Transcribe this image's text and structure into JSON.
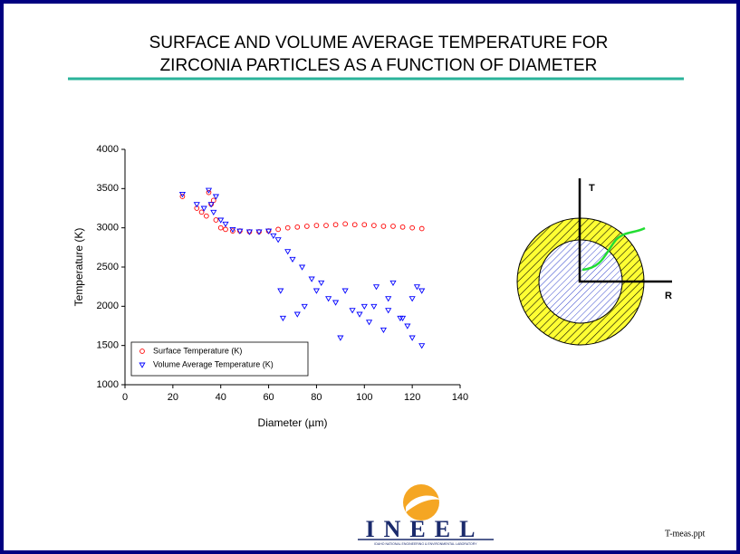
{
  "slide_title": [
    "SURFACE AND VOLUME AVERAGE TEMPERATURE FOR",
    "ZIRCONIA PARTICLES AS A FUNCTION OF DIAMETER"
  ],
  "chart_data": {
    "type": "scatter",
    "xlabel": "Diameter (µm)",
    "ylabel": "Temperature (K)",
    "xlim": [
      0,
      140
    ],
    "xticks": [
      0,
      20,
      40,
      60,
      80,
      100,
      120,
      140
    ],
    "ylim": [
      1000,
      4000
    ],
    "yticks": [
      1000,
      1500,
      2000,
      2500,
      3000,
      3500,
      4000
    ],
    "legend": "lower left",
    "series": [
      {
        "name": "Surface Temperature (K)",
        "color": "#ff0000",
        "marker": "circle",
        "x": [
          24,
          30,
          32,
          34,
          35,
          36,
          37,
          38,
          40,
          42,
          45,
          48,
          52,
          56,
          60,
          64,
          68,
          72,
          76,
          80,
          84,
          88,
          92,
          96,
          100,
          104,
          108,
          112,
          116,
          120,
          124
        ],
        "values": [
          3400,
          3250,
          3200,
          3150,
          3450,
          3300,
          3350,
          3100,
          3000,
          2980,
          2960,
          2960,
          2950,
          2950,
          2960,
          2980,
          3000,
          3010,
          3020,
          3030,
          3030,
          3040,
          3050,
          3040,
          3040,
          3030,
          3020,
          3020,
          3010,
          3000,
          2990
        ]
      },
      {
        "name": "Volume Average Temperature (K)",
        "color": "#0000ff",
        "marker": "triangle-down",
        "x": [
          24,
          30,
          33,
          35,
          36,
          37,
          38,
          40,
          42,
          45,
          48,
          52,
          56,
          60,
          62,
          64,
          65,
          66,
          68,
          70,
          72,
          74,
          75,
          78,
          80,
          82,
          85,
          88,
          90,
          92,
          95,
          98,
          100,
          102,
          105,
          108,
          110,
          112,
          115,
          118,
          120,
          122,
          124,
          124,
          120,
          116,
          110,
          104
        ],
        "values": [
          3430,
          3300,
          3250,
          3480,
          3300,
          3200,
          3400,
          3100,
          3050,
          2980,
          2960,
          2950,
          2950,
          2960,
          2900,
          2850,
          2200,
          1850,
          2700,
          2600,
          1900,
          2500,
          2000,
          2350,
          2200,
          2300,
          2100,
          2050,
          1600,
          2200,
          1950,
          1900,
          2000,
          1800,
          2250,
          1700,
          1950,
          2300,
          1850,
          1750,
          1600,
          2250,
          1500,
          2200,
          2100,
          1850,
          2100,
          2000
        ]
      }
    ]
  },
  "diagram": {
    "t_label": "T",
    "r_label": "R"
  },
  "footer": {
    "logo": "INEEL",
    "logo_subtitle": "IDAHO NATIONAL ENGINEERING & ENVIRONMENTAL LABORATORY",
    "file": "T-meas.ppt"
  }
}
